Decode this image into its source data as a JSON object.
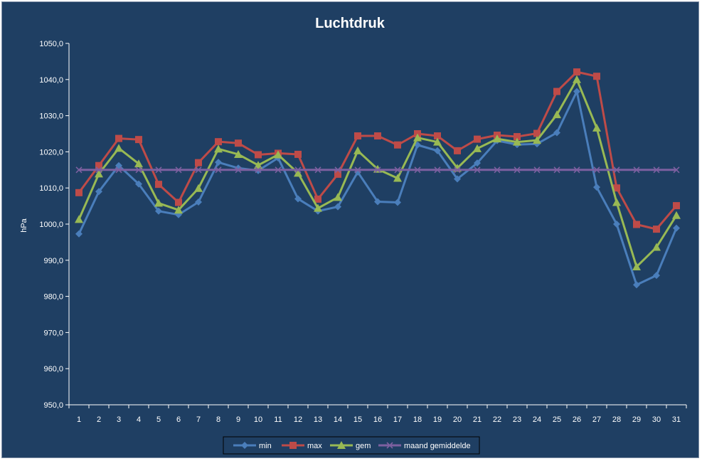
{
  "chart_data": {
    "type": "line",
    "title": "Luchtdruk",
    "ylabel": "hPa",
    "xlabel": "",
    "ylim": [
      950,
      1050
    ],
    "ytick_labels": [
      "950,0",
      "960,0",
      "970,0",
      "980,0",
      "990,0",
      "1000,0",
      "1010,0",
      "1020,0",
      "1030,0",
      "1040,0",
      "1050,0"
    ],
    "categories": [
      "1",
      "2",
      "3",
      "4",
      "5",
      "6",
      "7",
      "8",
      "9",
      "10",
      "11",
      "12",
      "13",
      "14",
      "15",
      "16",
      "17",
      "18",
      "19",
      "20",
      "21",
      "22",
      "23",
      "24",
      "25",
      "26",
      "27",
      "28",
      "29",
      "30",
      "31"
    ],
    "grid": false,
    "legend_position": "bottom",
    "series": [
      {
        "name": "min",
        "color": "#4a7ebb",
        "marker": "diamond",
        "values": [
          997.3,
          1009.0,
          1016.2,
          1011.1,
          1003.6,
          1002.6,
          1006.1,
          1017.1,
          1015.5,
          1014.8,
          1018.3,
          1007.0,
          1003.6,
          1004.8,
          1014.4,
          1006.2,
          1006.0,
          1021.9,
          1020.3,
          1012.5,
          1016.9,
          1023.1,
          1022.0,
          1022.2,
          1025.3,
          1036.7,
          1010.2,
          1000.0,
          983.2,
          985.8,
          998.9
        ]
      },
      {
        "name": "max",
        "color": "#be4b48",
        "marker": "square",
        "values": [
          1008.7,
          1016.2,
          1023.7,
          1023.4,
          1011.0,
          1006.0,
          1017.0,
          1022.8,
          1022.4,
          1019.2,
          1019.6,
          1019.3,
          1006.9,
          1013.8,
          1024.4,
          1024.4,
          1021.9,
          1025.0,
          1024.4,
          1020.3,
          1023.5,
          1024.6,
          1024.2,
          1025.1,
          1036.7,
          1042.1,
          1040.9,
          1010.0,
          999.9,
          998.6,
          1005.1
        ]
      },
      {
        "name": "gem",
        "color": "#98b954",
        "marker": "triangle",
        "values": [
          1001.3,
          1013.9,
          1021.0,
          1016.7,
          1005.8,
          1003.9,
          1009.9,
          1020.8,
          1019.3,
          1016.3,
          1019.2,
          1014.1,
          1004.4,
          1007.4,
          1020.3,
          1015.2,
          1012.7,
          1023.9,
          1022.7,
          1015.5,
          1020.9,
          1023.6,
          1022.7,
          1023.2,
          1030.3,
          1040.0,
          1026.6,
          1006.0,
          988.2,
          993.6,
          1002.4
        ]
      },
      {
        "name": "maand gemiddelde",
        "color": "#7d60a0",
        "marker": "x",
        "values": [
          1015.0,
          1015.0,
          1015.0,
          1015.0,
          1015.0,
          1015.0,
          1015.0,
          1015.0,
          1015.0,
          1015.0,
          1015.0,
          1015.0,
          1015.0,
          1015.0,
          1015.0,
          1015.0,
          1015.0,
          1015.0,
          1015.0,
          1015.0,
          1015.0,
          1015.0,
          1015.0,
          1015.0,
          1015.0,
          1015.0,
          1015.0,
          1015.0,
          1015.0,
          1015.0,
          1015.0
        ]
      }
    ]
  }
}
